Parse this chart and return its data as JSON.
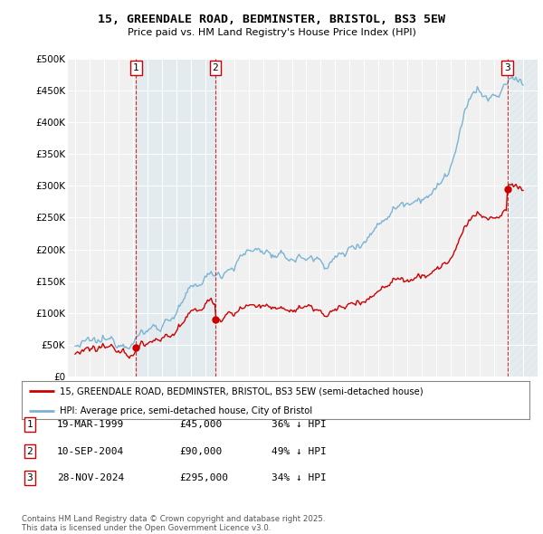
{
  "title_line1": "15, GREENDALE ROAD, BEDMINSTER, BRISTOL, BS3 5EW",
  "title_line2": "Price paid vs. HM Land Registry's House Price Index (HPI)",
  "background_color": "#ffffff",
  "plot_bg_color": "#f0f0f0",
  "hpi_color": "#7ab3d4",
  "price_color": "#cc0000",
  "purchases": [
    {
      "date": 1999.22,
      "price": 45000,
      "label": "1"
    },
    {
      "date": 2004.7,
      "price": 90000,
      "label": "2"
    },
    {
      "date": 2024.91,
      "price": 295000,
      "label": "3"
    }
  ],
  "legend_line1": "15, GREENDALE ROAD, BEDMINSTER, BRISTOL, BS3 5EW (semi-detached house)",
  "legend_line2": "HPI: Average price, semi-detached house, City of Bristol",
  "table_entries": [
    {
      "num": "1",
      "date": "19-MAR-1999",
      "price": "£45,000",
      "note": "36% ↓ HPI"
    },
    {
      "num": "2",
      "date": "10-SEP-2004",
      "price": "£90,000",
      "note": "49% ↓ HPI"
    },
    {
      "num": "3",
      "date": "28-NOV-2024",
      "price": "£295,000",
      "note": "34% ↓ HPI"
    }
  ],
  "footnote": "Contains HM Land Registry data © Crown copyright and database right 2025.\nThis data is licensed under the Open Government Licence v3.0.",
  "xmin": 1994.5,
  "xmax": 2027,
  "ymin": 0,
  "ymax": 500000,
  "yticks": [
    0,
    50000,
    100000,
    150000,
    200000,
    250000,
    300000,
    350000,
    400000,
    450000,
    500000
  ],
  "ytick_labels": [
    "£0",
    "£50K",
    "£100K",
    "£150K",
    "£200K",
    "£250K",
    "£300K",
    "£350K",
    "£400K",
    "£450K",
    "£500K"
  ]
}
